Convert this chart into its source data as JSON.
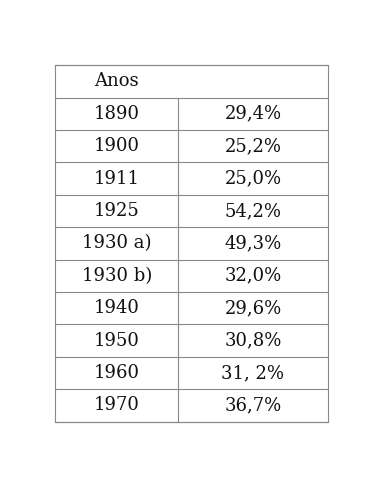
{
  "col1_header": "Anos",
  "col2_header": "",
  "rows": [
    [
      "1890",
      "29,4%"
    ],
    [
      "1900",
      "25,2%"
    ],
    [
      "1911",
      "25,0%"
    ],
    [
      "1925",
      "54,2%"
    ],
    [
      "1930 a)",
      "49,3%"
    ],
    [
      "1930 b)",
      "32,0%"
    ],
    [
      "1940",
      "29,6%"
    ],
    [
      "1950",
      "30,8%"
    ],
    [
      "1960",
      "31, 2%"
    ],
    [
      "1970",
      "36,7%"
    ]
  ],
  "background_color": "#ffffff",
  "border_color": "#888888",
  "text_color": "#111111",
  "font_size": 13,
  "header_font_size": 13,
  "fig_width": 3.74,
  "fig_height": 4.82,
  "dpi": 100
}
